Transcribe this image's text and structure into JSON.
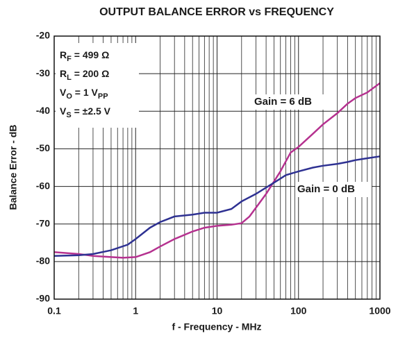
{
  "chart_data": {
    "type": "line",
    "title": "OUTPUT BALANCE ERROR vs FREQUENCY",
    "x_label": "f - Frequency - MHz",
    "y_label": "Balance Error - dB",
    "log_x": true,
    "grid": true,
    "xlim": [
      0.1,
      1000
    ],
    "ylim": [
      -90,
      -20
    ],
    "xticks": [
      0.1,
      1,
      10,
      100,
      1000
    ],
    "xminorticks": [
      0.2,
      0.3,
      0.4,
      0.5,
      0.6,
      0.7,
      0.8,
      0.9,
      2,
      3,
      4,
      5,
      6,
      7,
      8,
      9,
      20,
      30,
      40,
      50,
      60,
      70,
      80,
      90,
      200,
      300,
      400,
      500,
      600,
      700,
      800,
      900
    ],
    "yticks": [
      -90,
      -80,
      -70,
      -60,
      -50,
      -40,
      -30,
      -20
    ],
    "annotations": [
      [
        "R",
        "F",
        " = 499 Ω"
      ],
      [
        "R",
        "L",
        " = 200 Ω"
      ],
      [
        "V",
        "O",
        " = 1 V",
        "PP"
      ],
      [
        "V",
        "S",
        " = ±2.5 V"
      ]
    ],
    "series": [
      {
        "name": "Gain = 6 dB",
        "color": "#b5318f",
        "x": [
          0.1,
          0.2,
          0.3,
          0.5,
          0.7,
          1,
          1.5,
          2,
          3,
          5,
          7,
          10,
          15,
          20,
          25,
          40,
          60,
          80,
          100,
          150,
          200,
          300,
          400,
          500,
          700,
          1000
        ],
        "values": [
          -77.5,
          -78,
          -78.5,
          -78.8,
          -79,
          -78.8,
          -77.5,
          -76,
          -74,
          -72,
          -71,
          -70.5,
          -70.2,
          -69.8,
          -68,
          -62,
          -56,
          -51,
          -49.5,
          -46,
          -43.5,
          -40.5,
          -38,
          -36.5,
          -35,
          -32.5
        ]
      },
      {
        "name": "Gain = 0 dB",
        "color": "#2e3192",
        "x": [
          0.1,
          0.2,
          0.3,
          0.5,
          0.8,
          1,
          1.5,
          2,
          3,
          5,
          7,
          10,
          15,
          20,
          30,
          50,
          70,
          100,
          150,
          200,
          300,
          400,
          500,
          700,
          1000
        ],
        "values": [
          -78.5,
          -78.3,
          -78,
          -77,
          -75.5,
          -74,
          -71,
          -69.5,
          -68,
          -67.5,
          -67,
          -67,
          -66,
          -64,
          -62,
          -59,
          -57,
          -56,
          -55,
          -54.5,
          -54,
          -53.5,
          -53,
          -52.5,
          -52
        ]
      }
    ]
  }
}
